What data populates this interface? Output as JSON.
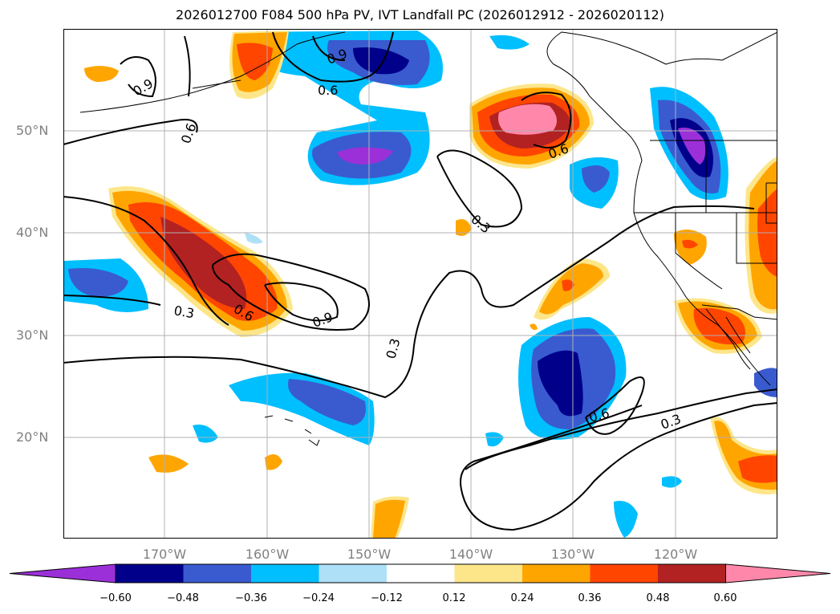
{
  "title": "2026012700 F084 500 hPa PV, IVT Landfall PC (2026012912 - 2026020112)",
  "lat_labels": [
    "50°N",
    "40°N",
    "30°N",
    "20°N"
  ],
  "lon_labels": [
    "170°W",
    "160°W",
    "150°W",
    "140°W",
    "130°W",
    "120°W"
  ],
  "contour_labels": [
    "0.9",
    "0.6",
    "0.6",
    "0.9",
    "0.6",
    "0.3",
    "0.3",
    "0.6",
    "0.9",
    "0.3",
    "0.6",
    "0.3"
  ],
  "colorbar": {
    "ticks": [
      "−0.60",
      "−0.48",
      "−0.36",
      "−0.24",
      "−0.12",
      "0.12",
      "0.24",
      "0.36",
      "0.48",
      "0.60"
    ],
    "colors": [
      "#9b30d9",
      "#00008b",
      "#3a5bd0",
      "#00bfff",
      "#aee0f7",
      "#ffffff",
      "#fde68a",
      "#ffa500",
      "#ff4500",
      "#b22222",
      "#ff88aa"
    ]
  }
}
